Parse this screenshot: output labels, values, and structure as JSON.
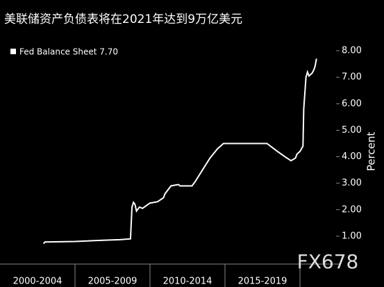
{
  "chart_data": {
    "type": "line",
    "title": "美联储资产负债表将在2021年达到9万亿美元",
    "legend_label": "Fed Balance Sheet 7.70",
    "ylabel": "Percent",
    "watermark": "FX678",
    "series": [
      {
        "name": "Fed Balance Sheet",
        "color": "#ffffff",
        "x": [
          2002.9,
          2003.0,
          2005.0,
          2007.0,
          2008.0,
          2008.7,
          2008.8,
          2008.9,
          2009.0,
          2009.1,
          2009.3,
          2009.5,
          2010.0,
          2010.5,
          2010.9,
          2011.0,
          2011.4,
          2011.9,
          2012.0,
          2012.8,
          2013.0,
          2013.5,
          2014.0,
          2014.5,
          2014.9,
          2017.8,
          2018.5,
          2019.0,
          2019.4,
          2019.7,
          2019.8,
          2020.0,
          2020.2,
          2020.25,
          2020.4,
          2020.5,
          2020.6,
          2020.8,
          2020.9,
          2021.0,
          2021.1
        ],
        "values": [
          0.72,
          0.78,
          0.8,
          0.85,
          0.87,
          0.9,
          2.1,
          2.28,
          2.2,
          1.95,
          2.1,
          2.05,
          2.25,
          2.3,
          2.45,
          2.6,
          2.9,
          2.95,
          2.9,
          2.9,
          3.05,
          3.5,
          3.95,
          4.3,
          4.5,
          4.5,
          4.2,
          4.0,
          3.85,
          3.95,
          4.1,
          4.2,
          4.4,
          5.8,
          7.0,
          7.2,
          7.05,
          7.15,
          7.25,
          7.4,
          7.7
        ]
      }
    ],
    "xlim": [
      2000,
      2021.6
    ],
    "xticks": [
      {
        "value": 2002.5,
        "label": "2000-2004"
      },
      {
        "value": 2007.5,
        "label": "2005-2009"
      },
      {
        "value": 2012.5,
        "label": "2010-2014"
      },
      {
        "value": 2017.5,
        "label": "2015-2019"
      }
    ],
    "ylim": [
      0,
      8.5
    ],
    "yticks": [
      {
        "value": 1,
        "label": "1.00"
      },
      {
        "value": 2,
        "label": "2.00"
      },
      {
        "value": 3,
        "label": "3.00"
      },
      {
        "value": 4,
        "label": "4.00"
      },
      {
        "value": 5,
        "label": "5.00"
      },
      {
        "value": 6,
        "label": "6.00"
      },
      {
        "value": 7,
        "label": "7.00"
      },
      {
        "value": 8,
        "label": "8.00"
      }
    ]
  }
}
